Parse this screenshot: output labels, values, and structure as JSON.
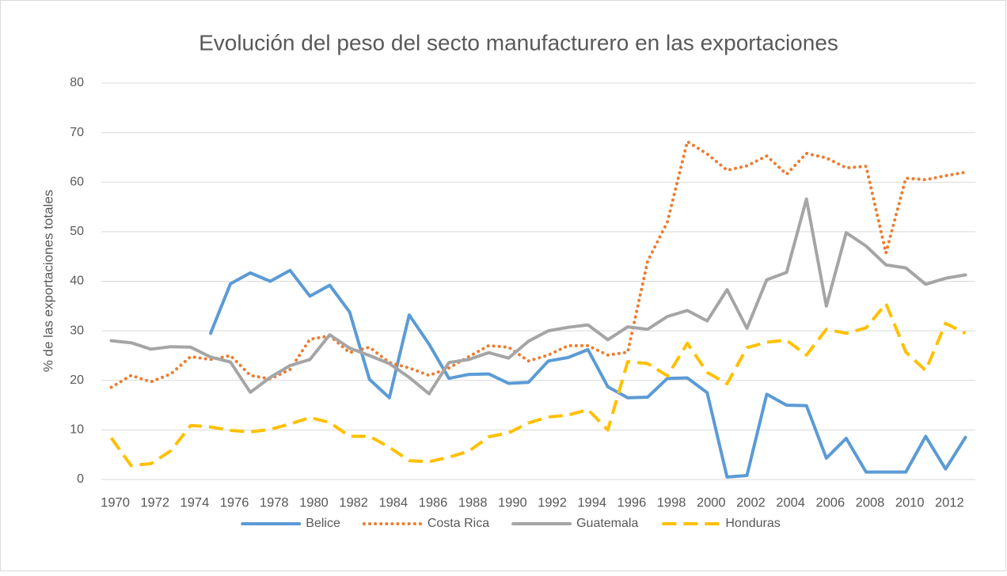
{
  "chart_data": {
    "type": "line",
    "title": "Evolución del peso del secto manufacturero en las exportaciones",
    "y_label": "% de las exportaciones totales",
    "categories": [
      "1970",
      null,
      "1972",
      null,
      "1974",
      null,
      "1976",
      null,
      "1978",
      null,
      "1980",
      null,
      "1982",
      null,
      "1984",
      null,
      "1986",
      null,
      "1988",
      null,
      "1990",
      null,
      "1992",
      null,
      "1994",
      null,
      "1996",
      null,
      "1998",
      null,
      "2000",
      null,
      "2002",
      null,
      "2004",
      null,
      "2006",
      null,
      "2008",
      null,
      "2010",
      null,
      "2012",
      null
    ],
    "series": [
      {
        "name": "Belice",
        "color": "#5b9bd5",
        "style": "solid",
        "values": [
          null,
          null,
          null,
          null,
          null,
          29.5,
          39.5,
          41.7,
          40,
          42.2,
          37,
          39.2,
          33.8,
          20.2,
          16.5,
          33.2,
          27.3,
          20.4,
          21.2,
          21.3,
          19.4,
          19.6,
          23.9,
          24.6,
          26.2,
          18.7,
          16.5,
          16.6,
          20.4,
          20.5,
          17.5,
          0.5,
          0.8,
          17.2,
          15,
          14.9,
          4.3,
          8.3,
          1.5,
          1.5,
          1.5,
          8.7,
          2.1,
          8.5
        ]
      },
      {
        "name": "Costa Rica",
        "color": "#ed7d31",
        "style": "dotted",
        "values": [
          18.6,
          21,
          19.7,
          21.3,
          24.8,
          24.2,
          25,
          21,
          20.3,
          22.2,
          28.3,
          29,
          25.6,
          26.7,
          23.6,
          22.5,
          21,
          22.5,
          24.8,
          27,
          26.7,
          23.9,
          25.1,
          27,
          27,
          25.1,
          25.7,
          44,
          52,
          68.2,
          65.7,
          62.4,
          63.3,
          65.3,
          61.6,
          65.8,
          64.9,
          62.9,
          63.2,
          45.7,
          60.8,
          60.5,
          61.3,
          62
        ]
      },
      {
        "name": "Guatemala",
        "color": "#a5a5a5",
        "style": "solid",
        "values": [
          28,
          27.6,
          26.3,
          26.8,
          26.7,
          24.7,
          23.7,
          17.6,
          20.6,
          23,
          24.2,
          29.2,
          26.5,
          25,
          23.4,
          20.6,
          17.3,
          23.6,
          24.2,
          25.6,
          24.5,
          27.9,
          30,
          30.7,
          31.2,
          28.2,
          30.8,
          30.3,
          32.9,
          34.1,
          32,
          38.3,
          30.5,
          40.3,
          41.8,
          56.6,
          35,
          49.8,
          47.1,
          43.3,
          42.7,
          39.4,
          40.6,
          41.3
        ]
      },
      {
        "name": "Honduras",
        "color": "#ffc000",
        "style": "dashed",
        "values": [
          8.4,
          2.8,
          3.2,
          5.8,
          10.9,
          10.6,
          9.9,
          9.6,
          10.1,
          11.2,
          12.5,
          11.5,
          8.7,
          8.7,
          6.5,
          3.8,
          3.6,
          4.5,
          5.7,
          8.6,
          9.4,
          11.4,
          12.6,
          13,
          14.1,
          10,
          23.8,
          23.4,
          20.9,
          27.5,
          21.6,
          19.3,
          26.6,
          27.7,
          28.1,
          25.1,
          30.3,
          29.5,
          30.6,
          35.5,
          25.7,
          22,
          31.5,
          29.5
        ]
      }
    ],
    "ylim": [
      0,
      80
    ],
    "yticks": [
      0,
      10,
      20,
      30,
      40,
      50,
      60,
      70,
      80
    ],
    "grid": true,
    "legend": "bottom"
  }
}
